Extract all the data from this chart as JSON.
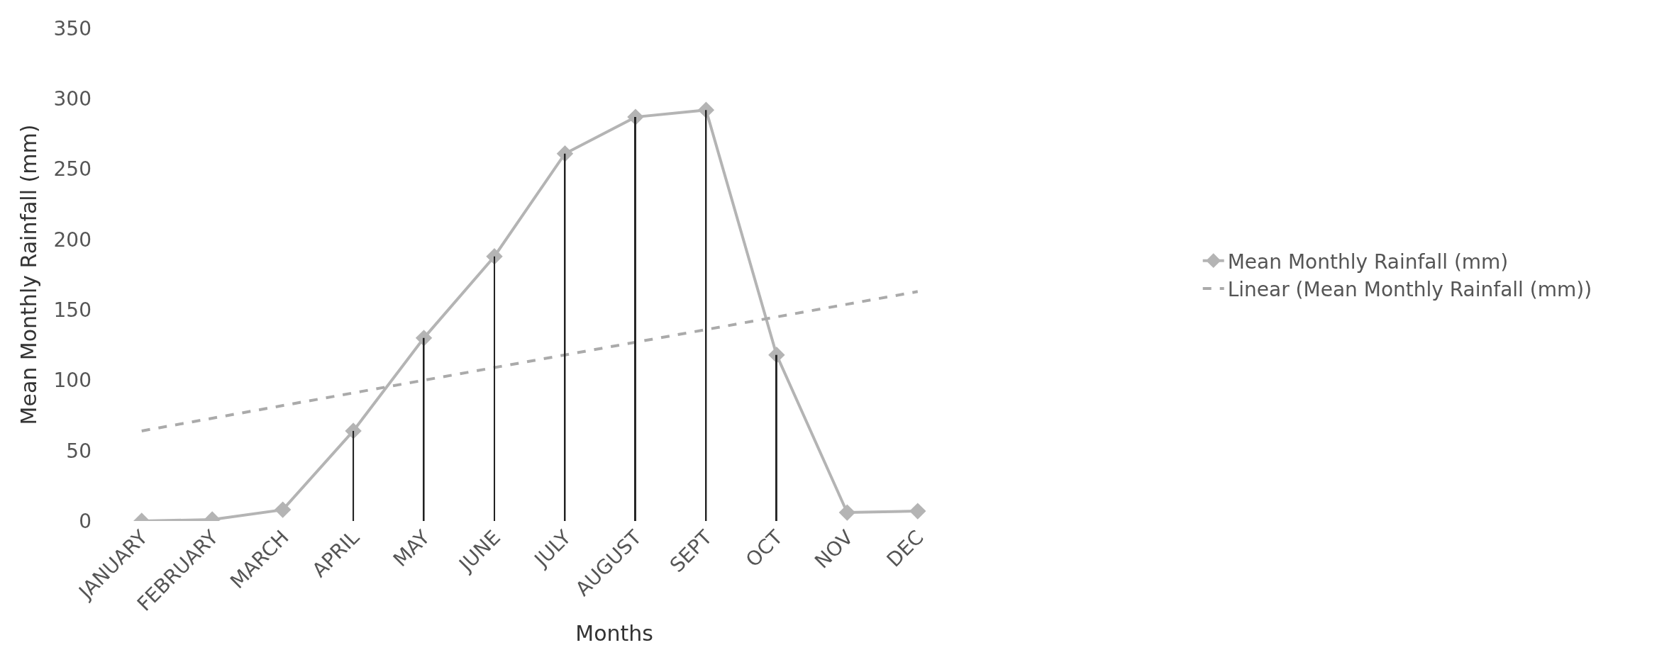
{
  "chart_data": {
    "type": "line",
    "xlabel": "Months",
    "ylabel": "Mean Monthly Rainfall (mm)",
    "categories": [
      "JANUARY",
      "FEBRUARY",
      "MARCH",
      "APRIL",
      "MAY",
      "JUNE",
      "JULY",
      "AUGUST",
      "SEPT",
      "OCT",
      "NOV",
      "DEC"
    ],
    "series": [
      {
        "name": "Mean Monthly Rainfall (mm)",
        "color": "#b4b4b4",
        "marker": "diamond",
        "values": [
          0,
          1,
          8,
          64,
          130,
          188,
          261,
          287,
          292,
          118,
          6,
          7
        ]
      },
      {
        "name": "Linear (Mean Monthly Rainfall (mm))",
        "type": "line",
        "color": "#aaaaaa",
        "line_style": "dashed",
        "marker": "none",
        "x": [
          "JANUARY",
          "DEC"
        ],
        "values": [
          64,
          163
        ]
      },
      {
        "type": "bar",
        "color": "#222222",
        "values": [
          null,
          null,
          null,
          64,
          130,
          188,
          261,
          287,
          292,
          118,
          null,
          null
        ]
      }
    ],
    "ylim": [
      0,
      350
    ],
    "yticks": [
      0,
      50,
      100,
      150,
      200,
      250,
      300,
      350
    ],
    "legend": "right"
  }
}
